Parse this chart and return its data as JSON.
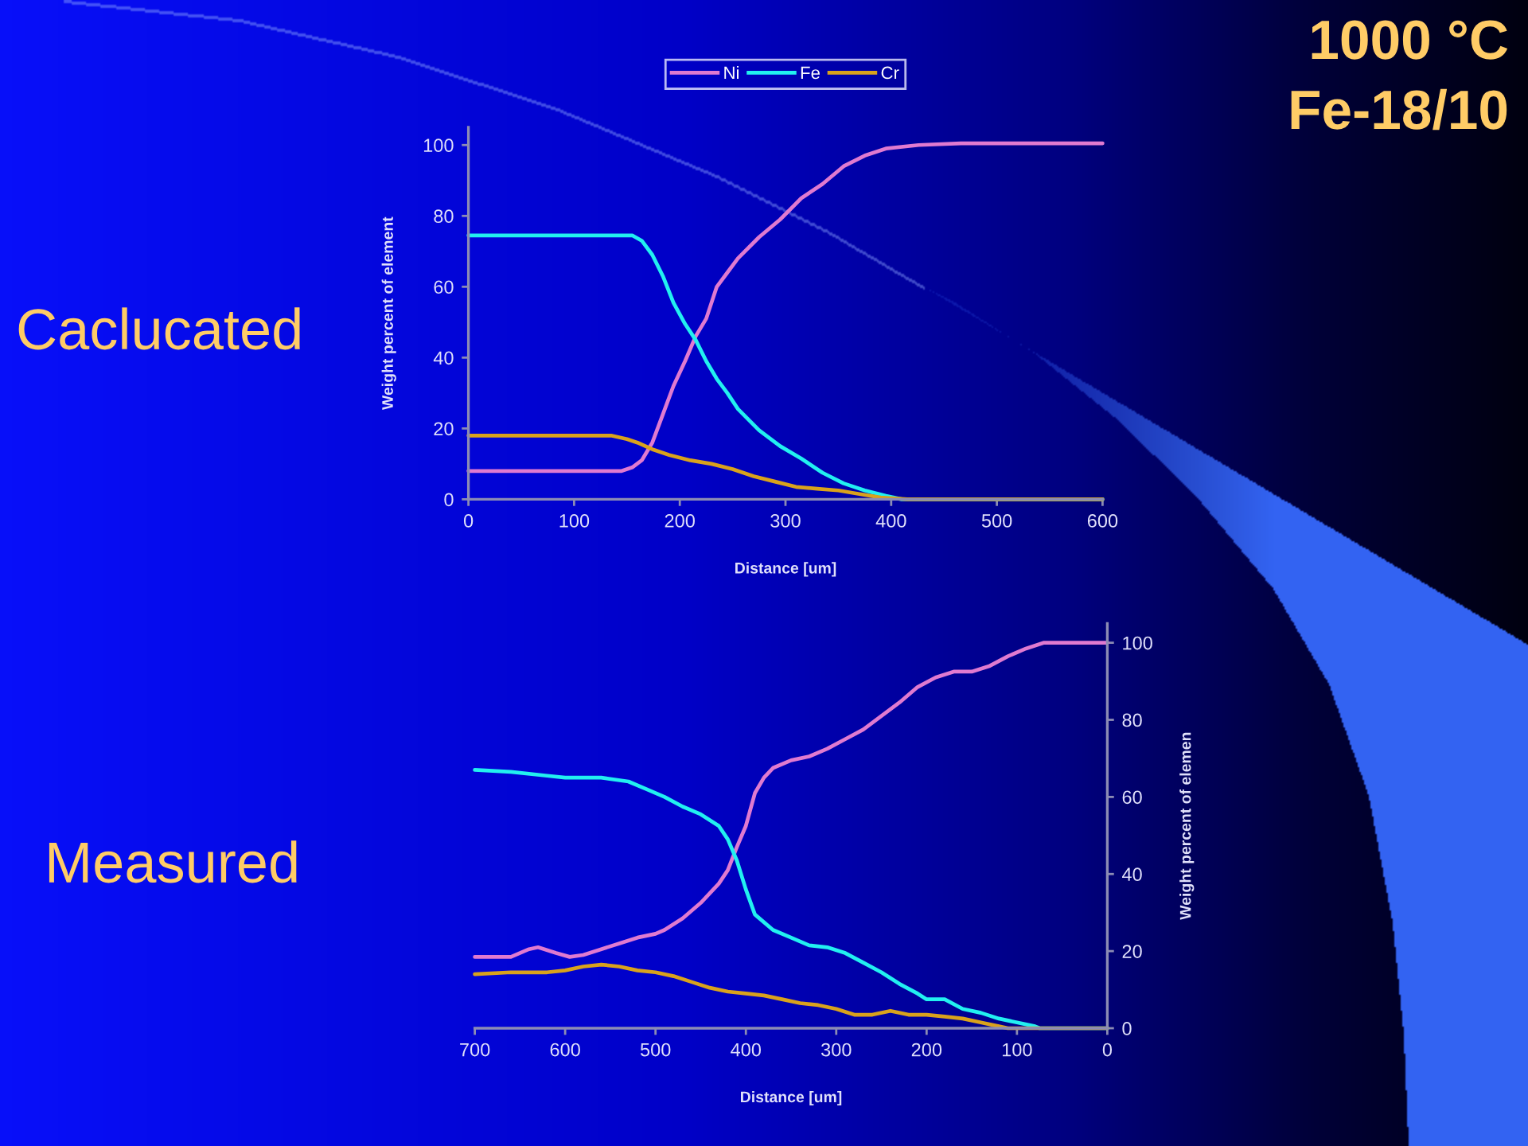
{
  "chart_data": [
    {
      "type": "line",
      "title": "Caclucated",
      "annotations": [
        "1000 °C",
        "Fe-18/10"
      ],
      "xlabel": "Distance [um]",
      "ylabel": "Weight percent of element",
      "xlim": [
        0,
        600
      ],
      "xticks": [
        0,
        100,
        200,
        300,
        400,
        500,
        600
      ],
      "ylim": [
        0,
        105
      ],
      "yticks": [
        0,
        20,
        40,
        60,
        80,
        100
      ],
      "legend": "top",
      "series": [
        {
          "name": "Ni",
          "color": "#e07ad0",
          "x": [
            0,
            145,
            155,
            164,
            174,
            184,
            194,
            205,
            215,
            225,
            235,
            245,
            255,
            275,
            295,
            315,
            335,
            355,
            375,
            395,
            426,
            466,
            600
          ],
          "values": [
            8,
            8,
            9,
            11,
            16,
            24,
            32,
            39,
            46,
            51,
            60,
            64,
            68,
            74,
            79,
            85,
            89,
            94,
            97,
            99,
            100,
            100.5,
            100.5
          ]
        },
        {
          "name": "Fe",
          "color": "#22f0f0",
          "x": [
            0,
            155,
            164,
            174,
            184,
            194,
            205,
            215,
            225,
            235,
            245,
            255,
            275,
            295,
            315,
            335,
            355,
            375,
            395,
            410,
            600
          ],
          "values": [
            74.5,
            74.5,
            73,
            69,
            63,
            55.5,
            49.5,
            45,
            39,
            34,
            30,
            25.5,
            19.5,
            15,
            11.5,
            7.5,
            4.5,
            2.5,
            1,
            0,
            0
          ]
        },
        {
          "name": "Cr",
          "color": "#d9a21c",
          "x": [
            0,
            135,
            150,
            160,
            175,
            190,
            210,
            230,
            250,
            270,
            290,
            310,
            330,
            350,
            370,
            390,
            415,
            600
          ],
          "values": [
            18,
            18,
            17,
            16,
            14,
            12.5,
            11,
            10,
            8.5,
            6.5,
            5,
            3.5,
            3,
            2.5,
            1.5,
            0.5,
            0,
            0
          ]
        }
      ]
    },
    {
      "type": "line",
      "title": "Measured",
      "xlabel": "Distance [um]",
      "y2label": "Weight percent of elemen",
      "xlim": [
        700,
        0
      ],
      "xticks": [
        700,
        600,
        500,
        400,
        300,
        200,
        100,
        0
      ],
      "y2lim": [
        0,
        105
      ],
      "y2ticks": [
        0,
        20,
        40,
        60,
        80,
        100
      ],
      "series": [
        {
          "color": "#e07ad0",
          "axis": "y2",
          "x": [
            700,
            660,
            640,
            630,
            610,
            595,
            580,
            560,
            540,
            520,
            500,
            490,
            470,
            450,
            430,
            420,
            410,
            400,
            390,
            380,
            370,
            350,
            330,
            310,
            290,
            270,
            250,
            230,
            210,
            190,
            170,
            150,
            130,
            110,
            90,
            70,
            0
          ],
          "values": [
            18.5,
            18.5,
            20.5,
            21,
            19.5,
            18.5,
            19,
            20.5,
            22,
            23.5,
            24.5,
            25.5,
            28.5,
            32.5,
            37.5,
            41,
            47,
            52.5,
            61,
            65,
            67.5,
            69.5,
            70.5,
            72.5,
            75,
            77.5,
            81,
            84.5,
            88.5,
            91,
            92.5,
            92.5,
            94,
            96.5,
            98.5,
            100,
            100
          ]
        },
        {
          "color": "#22f0f0",
          "axis": "y2",
          "x": [
            700,
            660,
            620,
            600,
            560,
            530,
            510,
            490,
            470,
            450,
            430,
            420,
            410,
            400,
            390,
            370,
            350,
            330,
            310,
            290,
            270,
            250,
            230,
            210,
            200,
            180,
            160,
            140,
            120,
            100,
            80,
            75,
            0
          ],
          "values": [
            67,
            66.5,
            65.5,
            65,
            65,
            64,
            62,
            60,
            57.5,
            55.5,
            52.5,
            49,
            43.5,
            36,
            29.5,
            25.5,
            23.5,
            21.5,
            21,
            19.5,
            17,
            14.5,
            11.5,
            9,
            7.5,
            7.5,
            5,
            4,
            2.5,
            1.5,
            0.5,
            0,
            0
          ]
        },
        {
          "color": "#d9a21c",
          "axis": "y2",
          "x": [
            700,
            660,
            620,
            600,
            580,
            560,
            540,
            520,
            500,
            480,
            460,
            440,
            420,
            400,
            380,
            360,
            340,
            320,
            300,
            280,
            260,
            240,
            220,
            200,
            180,
            160,
            140,
            120,
            110,
            0
          ],
          "values": [
            14,
            14.5,
            14.5,
            15,
            16,
            16.5,
            16,
            15,
            14.5,
            13.5,
            12,
            10.5,
            9.5,
            9,
            8.5,
            7.5,
            6.5,
            6,
            5,
            3.5,
            3.5,
            4.5,
            3.5,
            3.5,
            3,
            2.5,
            1.5,
            0.5,
            0,
            0
          ]
        }
      ]
    }
  ]
}
